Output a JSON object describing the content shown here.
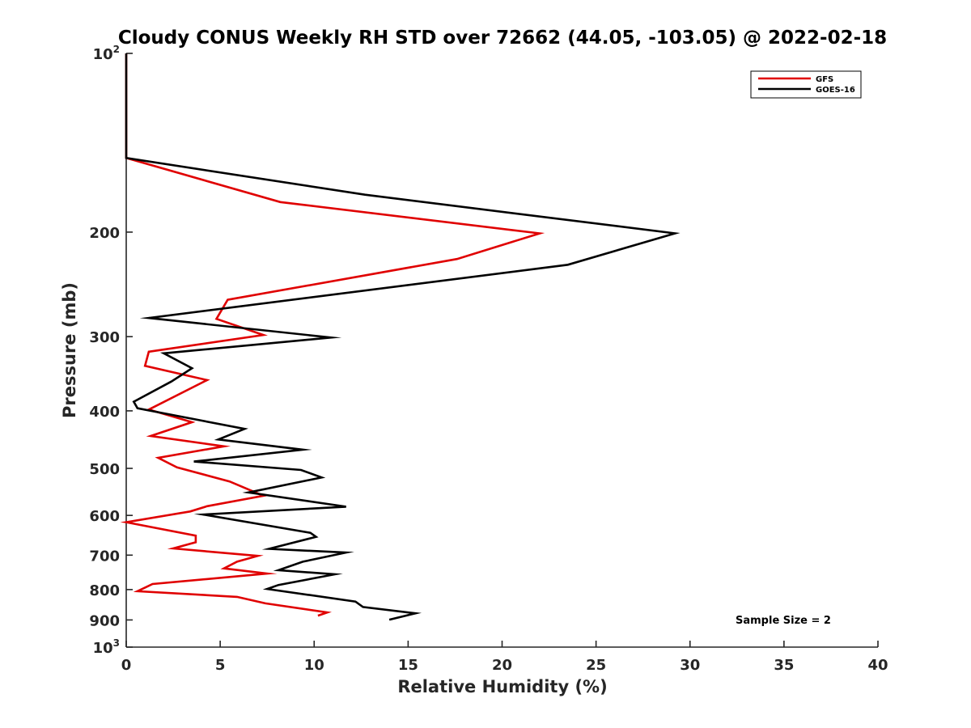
{
  "chart_data": {
    "type": "line",
    "title": "Cloudy CONUS Weekly RH STD over 72662 (44.05, -103.05) @ 2022-02-18",
    "xlabel": "Relative Humidity (%)",
    "ylabel": "Pressure (mb)",
    "xlim": [
      0,
      40
    ],
    "ylim": [
      100,
      1000
    ],
    "y_scale": "log",
    "y_reversed": true,
    "x_ticks": [
      0,
      5,
      10,
      15,
      20,
      25,
      30,
      35,
      40
    ],
    "y_ticks": [
      {
        "value": 100,
        "base": "10",
        "exp": "2"
      },
      {
        "value": 200,
        "label": "200"
      },
      {
        "value": 300,
        "label": "300"
      },
      {
        "value": 400,
        "label": "400"
      },
      {
        "value": 500,
        "label": "500"
      },
      {
        "value": 600,
        "label": "600"
      },
      {
        "value": 700,
        "label": "700"
      },
      {
        "value": 800,
        "label": "800"
      },
      {
        "value": 900,
        "label": "900"
      },
      {
        "value": 1000,
        "base": "10",
        "exp": "3"
      }
    ],
    "legend_position": "top-right",
    "grid": false,
    "annotation": "Sample Size = 2",
    "series": [
      {
        "name": "GFS",
        "color": "#e00000",
        "points": [
          [
            0,
            100
          ],
          [
            0,
            150
          ],
          [
            8.2,
            178
          ],
          [
            22,
            201
          ],
          [
            17.6,
            222
          ],
          [
            5.4,
            260
          ],
          [
            4.8,
            280
          ],
          [
            7.3,
            298
          ],
          [
            1.2,
            318
          ],
          [
            1.0,
            336
          ],
          [
            4.3,
            355
          ],
          [
            1.2,
            398
          ],
          [
            3.5,
            418
          ],
          [
            1.3,
            441
          ],
          [
            5.2,
            459
          ],
          [
            1.7,
            480
          ],
          [
            2.7,
            498
          ],
          [
            5.5,
            526
          ],
          [
            7.3,
            556
          ],
          [
            4.3,
            579
          ],
          [
            3.4,
            591
          ],
          [
            0,
            616
          ],
          [
            3.7,
            649
          ],
          [
            3.7,
            666
          ],
          [
            2.5,
            682
          ],
          [
            7.0,
            702
          ],
          [
            5.9,
            718
          ],
          [
            5.2,
            737
          ],
          [
            7.5,
            752
          ],
          [
            1.4,
            783
          ],
          [
            0.6,
            805
          ],
          [
            5.9,
            823
          ],
          [
            7.4,
            844
          ],
          [
            10.7,
            874
          ],
          [
            10.2,
            885
          ]
        ]
      },
      {
        "name": "GOES-16",
        "color": "#000000",
        "points": [
          [
            0,
            100
          ],
          [
            0,
            150
          ],
          [
            12.7,
            173
          ],
          [
            29.2,
            201
          ],
          [
            23.5,
            227
          ],
          [
            1.2,
            279
          ],
          [
            10.9,
            301
          ],
          [
            2.0,
            320
          ],
          [
            3.5,
            339
          ],
          [
            2.4,
            357
          ],
          [
            0.4,
            386
          ],
          [
            0.6,
            396
          ],
          [
            6.3,
            429
          ],
          [
            4.9,
            447
          ],
          [
            9.4,
            465
          ],
          [
            3.6,
            487
          ],
          [
            9.3,
            503
          ],
          [
            10.4,
            518
          ],
          [
            6.5,
            549
          ],
          [
            11.7,
            580
          ],
          [
            4.1,
            598
          ],
          [
            9.8,
            642
          ],
          [
            10.1,
            652
          ],
          [
            7.6,
            683
          ],
          [
            11.7,
            693
          ],
          [
            9.4,
            718
          ],
          [
            8.1,
            742
          ],
          [
            11.1,
            754
          ],
          [
            8.1,
            786
          ],
          [
            7.5,
            798
          ],
          [
            12.2,
            838
          ],
          [
            12.6,
            856
          ],
          [
            15.4,
            877
          ],
          [
            14.0,
            899
          ]
        ]
      }
    ]
  }
}
